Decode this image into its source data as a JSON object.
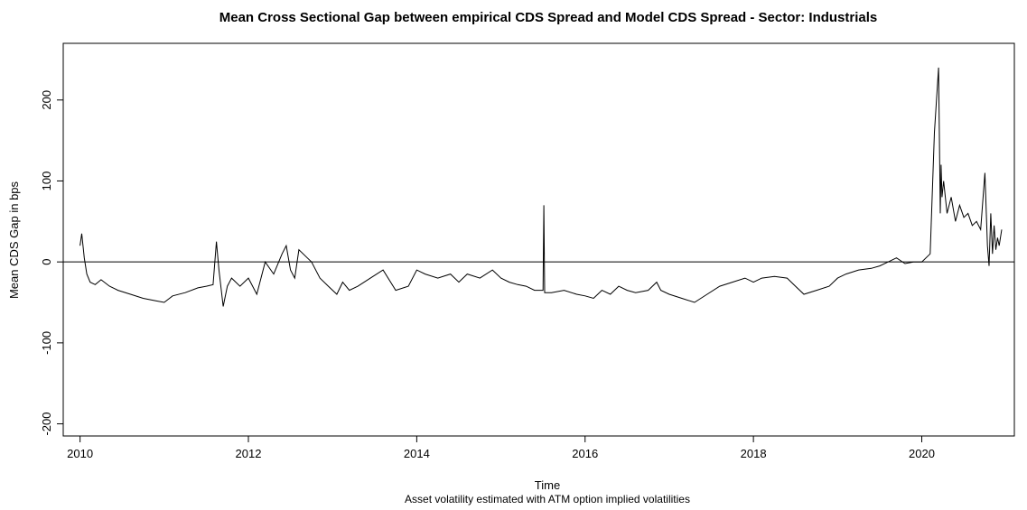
{
  "chart_data": {
    "type": "line",
    "title": "Mean Cross Sectional Gap between empirical CDS Spread and Model CDS Spread - Sector: Industrials",
    "xlabel": "Time",
    "subtitle": "Asset volatility estimated with ATM option implied volatilities",
    "ylabel": "Mean CDS Gap in bps",
    "xlim": [
      2009.8,
      2021.1
    ],
    "ylim": [
      -215,
      270
    ],
    "x_ticks": [
      2010,
      2012,
      2014,
      2016,
      2018,
      2020
    ],
    "x_tick_labels": [
      "2010",
      "2012",
      "2014",
      "2016",
      "2018",
      "2020"
    ],
    "y_ticks": [
      -200,
      -100,
      0,
      100,
      200
    ],
    "y_tick_labels": [
      "-200",
      "-100",
      "0",
      "100",
      "200"
    ],
    "reference_line_y": 0,
    "line_color": "#000000",
    "grid": false,
    "legend": "none",
    "series": [
      {
        "x": [
          2010.0,
          2010.02,
          2010.05,
          2010.08,
          2010.12,
          2010.18,
          2010.25,
          2010.35,
          2010.45,
          2010.6,
          2010.75,
          2010.9,
          2011.0,
          2011.1,
          2011.25,
          2011.4,
          2011.5,
          2011.58,
          2011.62,
          2011.65,
          2011.7,
          2011.75,
          2011.8,
          2011.9,
          2012.0,
          2012.1,
          2012.2,
          2012.3,
          2012.4,
          2012.45,
          2012.5,
          2012.55,
          2012.6,
          2012.7,
          2012.75,
          2012.85,
          2012.95,
          2013.05,
          2013.12,
          2013.2,
          2013.3,
          2013.45,
          2013.6,
          2013.75,
          2013.9,
          2014.0,
          2014.1,
          2014.25,
          2014.4,
          2014.5,
          2014.6,
          2014.75,
          2014.9,
          2015.0,
          2015.1,
          2015.2,
          2015.3,
          2015.4,
          2015.5,
          2015.51,
          2015.52,
          2015.6,
          2015.75,
          2015.9,
          2016.0,
          2016.1,
          2016.2,
          2016.3,
          2016.4,
          2016.5,
          2016.6,
          2016.75,
          2016.85,
          2016.9,
          2017.0,
          2017.15,
          2017.3,
          2017.45,
          2017.6,
          2017.75,
          2017.9,
          2018.0,
          2018.1,
          2018.25,
          2018.4,
          2018.5,
          2018.6,
          2018.75,
          2018.9,
          2019.0,
          2019.1,
          2019.25,
          2019.4,
          2019.5,
          2019.6,
          2019.7,
          2019.8,
          2019.9,
          2020.0,
          2020.1,
          2020.15,
          2020.2,
          2020.22,
          2020.23,
          2020.24,
          2020.26,
          2020.3,
          2020.35,
          2020.4,
          2020.45,
          2020.5,
          2020.55,
          2020.6,
          2020.65,
          2020.7,
          2020.75,
          2020.78,
          2020.8,
          2020.82,
          2020.84,
          2020.86,
          2020.88,
          2020.9,
          2020.92,
          2020.95
        ],
        "y": [
          20,
          35,
          5,
          -15,
          -25,
          -28,
          -22,
          -30,
          -35,
          -40,
          -45,
          -48,
          -50,
          -42,
          -38,
          -32,
          -30,
          -28,
          25,
          -10,
          -55,
          -30,
          -20,
          -30,
          -20,
          -40,
          0,
          -15,
          10,
          20,
          -10,
          -20,
          15,
          5,
          0,
          -20,
          -30,
          -40,
          -25,
          -35,
          -30,
          -20,
          -10,
          -35,
          -30,
          -10,
          -15,
          -20,
          -15,
          -25,
          -15,
          -20,
          -10,
          -20,
          -25,
          -28,
          -30,
          -35,
          -35,
          70,
          -38,
          -38,
          -35,
          -40,
          -42,
          -45,
          -35,
          -40,
          -30,
          -35,
          -38,
          -35,
          -25,
          -35,
          -40,
          -45,
          -50,
          -40,
          -30,
          -25,
          -20,
          -25,
          -20,
          -18,
          -20,
          -30,
          -40,
          -35,
          -30,
          -20,
          -15,
          -10,
          -8,
          -5,
          0,
          5,
          -2,
          0,
          0,
          10,
          160,
          240,
          60,
          120,
          80,
          100,
          60,
          80,
          50,
          70,
          55,
          60,
          45,
          50,
          40,
          110,
          20,
          -5,
          60,
          10,
          45,
          15,
          30,
          20,
          40
        ]
      }
    ]
  }
}
